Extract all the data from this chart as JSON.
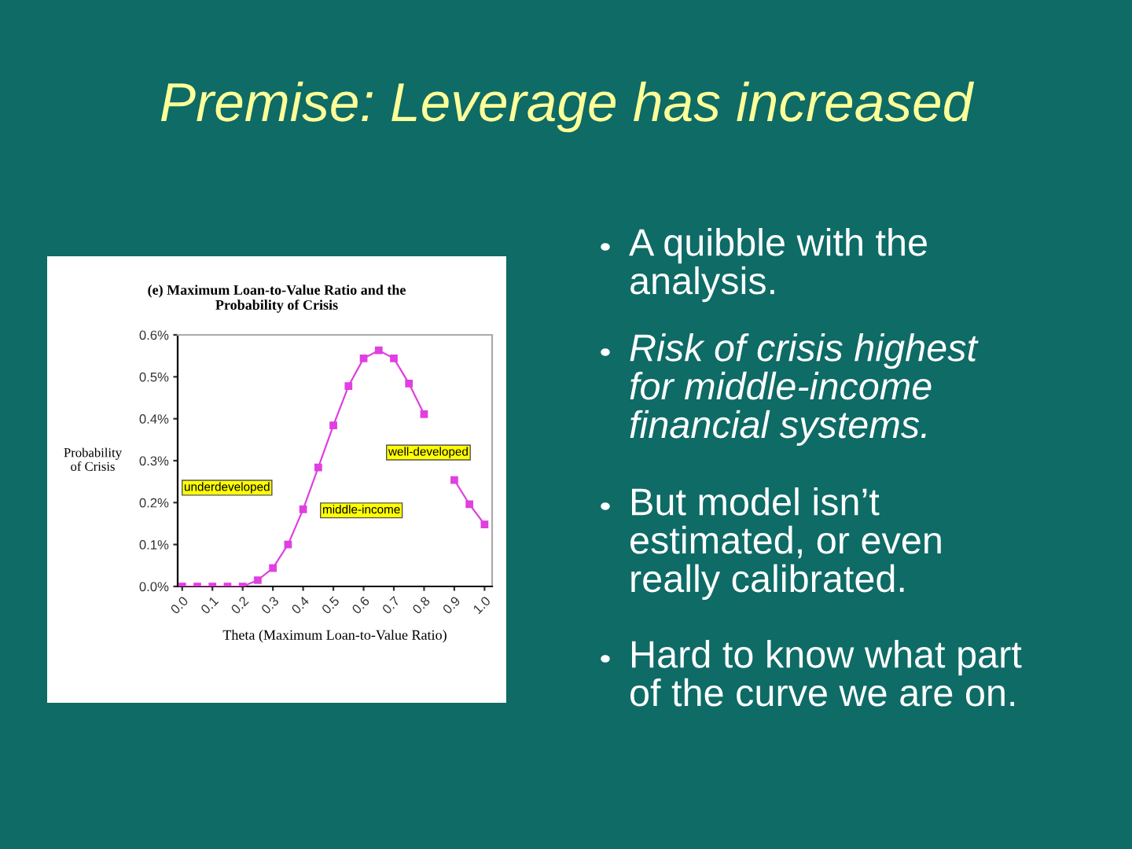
{
  "chart_data": {
    "type": "line",
    "title": "Premise: Leverage has increased",
    "subtitle": "(e) Maximum Loan-to-Value Ratio and the\nProbability of Crisis",
    "xlabel": "Theta (Maximum Loan-to-Value Ratio)",
    "ylabel": "Probability\nof Crisis",
    "x": [
      0.0,
      0.05,
      0.1,
      0.15,
      0.2,
      0.25,
      0.3,
      0.35,
      0.4,
      0.45,
      0.5,
      0.55,
      0.6,
      0.65,
      0.7,
      0.75,
      0.8,
      0.85,
      0.9,
      0.95,
      1.0
    ],
    "series": [
      {
        "color": "#e040e0",
        "values": [
          0.0,
          0.0,
          0.0,
          0.0,
          0.0,
          0.015,
          0.044,
          0.1,
          0.184,
          0.284,
          0.384,
          0.478,
          0.544,
          0.563,
          0.544,
          0.484,
          0.411,
          null,
          0.254,
          0.196,
          0.148
        ]
      }
    ],
    "xlim": [
      -0.015,
      1.025
    ],
    "xticks": [
      {
        "value": 0,
        "label": "0.0"
      },
      0.1,
      0.2,
      0.3,
      0.4,
      0.5,
      0.6,
      0.7,
      0.8,
      0.9,
      {
        "value": 1,
        "label": "1.0"
      }
    ],
    "ylim": [
      0,
      0.6
    ],
    "yticks": [
      {
        "value": 0,
        "label": "0.0%"
      },
      {
        "value": 0.1,
        "label": "0.1%"
      },
      {
        "value": 0.2,
        "label": "0.2%"
      },
      {
        "value": 0.3,
        "label": "0.3%"
      },
      {
        "value": 0.4,
        "label": "0.4%"
      },
      {
        "value": 0.5,
        "label": "0.5%"
      },
      {
        "value": 0.6,
        "label": "0.6%"
      }
    ],
    "marker": "square",
    "line_style": "solid",
    "grid": false,
    "legend": false,
    "annotations": [
      "underdeveloped",
      "middle-income",
      "well-developed",
      "A quibble with the\nanalysis.",
      "Risk of crisis highest\nfor middle-income\nfinancial systems.",
      "But model isn’t\nestimated, or even\nreally calibrated.",
      "Hard to know what part\nof the curve we are on."
    ]
  }
}
